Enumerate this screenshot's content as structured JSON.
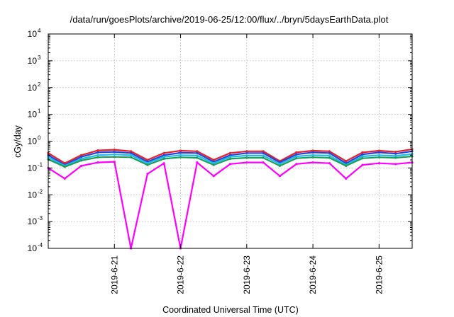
{
  "chart_data": {
    "type": "line",
    "title": "/data/run/goesPlots/archive/2019-06-25/12:00/flux/../bryn/5daysEarthData.plot",
    "xlabel": "Coordinated Universal Time (UTC)",
    "ylabel": "cGy/day",
    "yscale": "log",
    "ylim": [
      0.0001,
      10000
    ],
    "xlim": [
      "2019-06-20T00:00",
      "2019-06-25T12:00"
    ],
    "grid": true,
    "legend": "none",
    "y_ticks": [
      {
        "base": "10",
        "exp": "-4",
        "value": 0.0001
      },
      {
        "base": "10",
        "exp": "-3",
        "value": 0.001
      },
      {
        "base": "10",
        "exp": "-2",
        "value": 0.01
      },
      {
        "base": "10",
        "exp": "-1",
        "value": 0.1
      },
      {
        "base": "10",
        "exp": "0",
        "value": 1
      },
      {
        "base": "10",
        "exp": "1",
        "value": 10
      },
      {
        "base": "10",
        "exp": "2",
        "value": 100
      },
      {
        "base": "10",
        "exp": "3",
        "value": 1000
      },
      {
        "base": "10",
        "exp": "4",
        "value": 10000
      }
    ],
    "x_ticks": [
      {
        "label": "2019-6-21",
        "value": "2019-06-21T00:00"
      },
      {
        "label": "2019-6-22",
        "value": "2019-06-22T00:00"
      },
      {
        "label": "2019-6-23",
        "value": "2019-06-23T00:00"
      },
      {
        "label": "2019-6-24",
        "value": "2019-06-24T00:00"
      },
      {
        "label": "2019-6-25",
        "value": "2019-06-25T00:00"
      }
    ],
    "x": [
      "2019-06-20T00:00",
      "2019-06-20T06:00",
      "2019-06-20T12:00",
      "2019-06-20T18:00",
      "2019-06-21T00:00",
      "2019-06-21T06:00",
      "2019-06-21T12:00",
      "2019-06-21T18:00",
      "2019-06-22T00:00",
      "2019-06-22T06:00",
      "2019-06-22T12:00",
      "2019-06-22T18:00",
      "2019-06-23T00:00",
      "2019-06-23T06:00",
      "2019-06-23T12:00",
      "2019-06-23T18:00",
      "2019-06-24T00:00",
      "2019-06-24T06:00",
      "2019-06-24T12:00",
      "2019-06-24T18:00",
      "2019-06-25T00:00",
      "2019-06-25T06:00",
      "2019-06-25T12:00"
    ],
    "series": [
      {
        "color": "#e8202a",
        "values": [
          0.36,
          0.15,
          0.3,
          0.45,
          0.48,
          0.42,
          0.2,
          0.36,
          0.44,
          0.42,
          0.2,
          0.36,
          0.42,
          0.42,
          0.18,
          0.38,
          0.44,
          0.42,
          0.18,
          0.38,
          0.44,
          0.4,
          0.5
        ]
      },
      {
        "color": "#2244dd",
        "values": [
          0.3,
          0.13,
          0.26,
          0.38,
          0.4,
          0.36,
          0.17,
          0.3,
          0.37,
          0.36,
          0.17,
          0.3,
          0.36,
          0.36,
          0.16,
          0.32,
          0.38,
          0.36,
          0.15,
          0.32,
          0.38,
          0.34,
          0.42
        ]
      },
      {
        "color": "#22b8e8",
        "values": [
          0.25,
          0.12,
          0.22,
          0.3,
          0.32,
          0.3,
          0.15,
          0.26,
          0.3,
          0.29,
          0.15,
          0.26,
          0.29,
          0.29,
          0.14,
          0.27,
          0.3,
          0.29,
          0.13,
          0.27,
          0.3,
          0.28,
          0.33
        ]
      },
      {
        "color": "#18a05a",
        "values": [
          0.21,
          0.11,
          0.19,
          0.25,
          0.26,
          0.25,
          0.13,
          0.22,
          0.25,
          0.24,
          0.13,
          0.22,
          0.24,
          0.24,
          0.12,
          0.23,
          0.25,
          0.24,
          0.12,
          0.23,
          0.25,
          0.24,
          0.27
        ]
      },
      {
        "color": "#ff00ff",
        "values": [
          0.1,
          0.04,
          0.12,
          0.16,
          0.17,
          0.0001,
          0.06,
          0.15,
          0.0001,
          0.16,
          0.05,
          0.14,
          0.16,
          0.16,
          0.05,
          0.14,
          0.16,
          0.15,
          0.04,
          0.13,
          0.15,
          0.14,
          0.16
        ]
      }
    ]
  }
}
